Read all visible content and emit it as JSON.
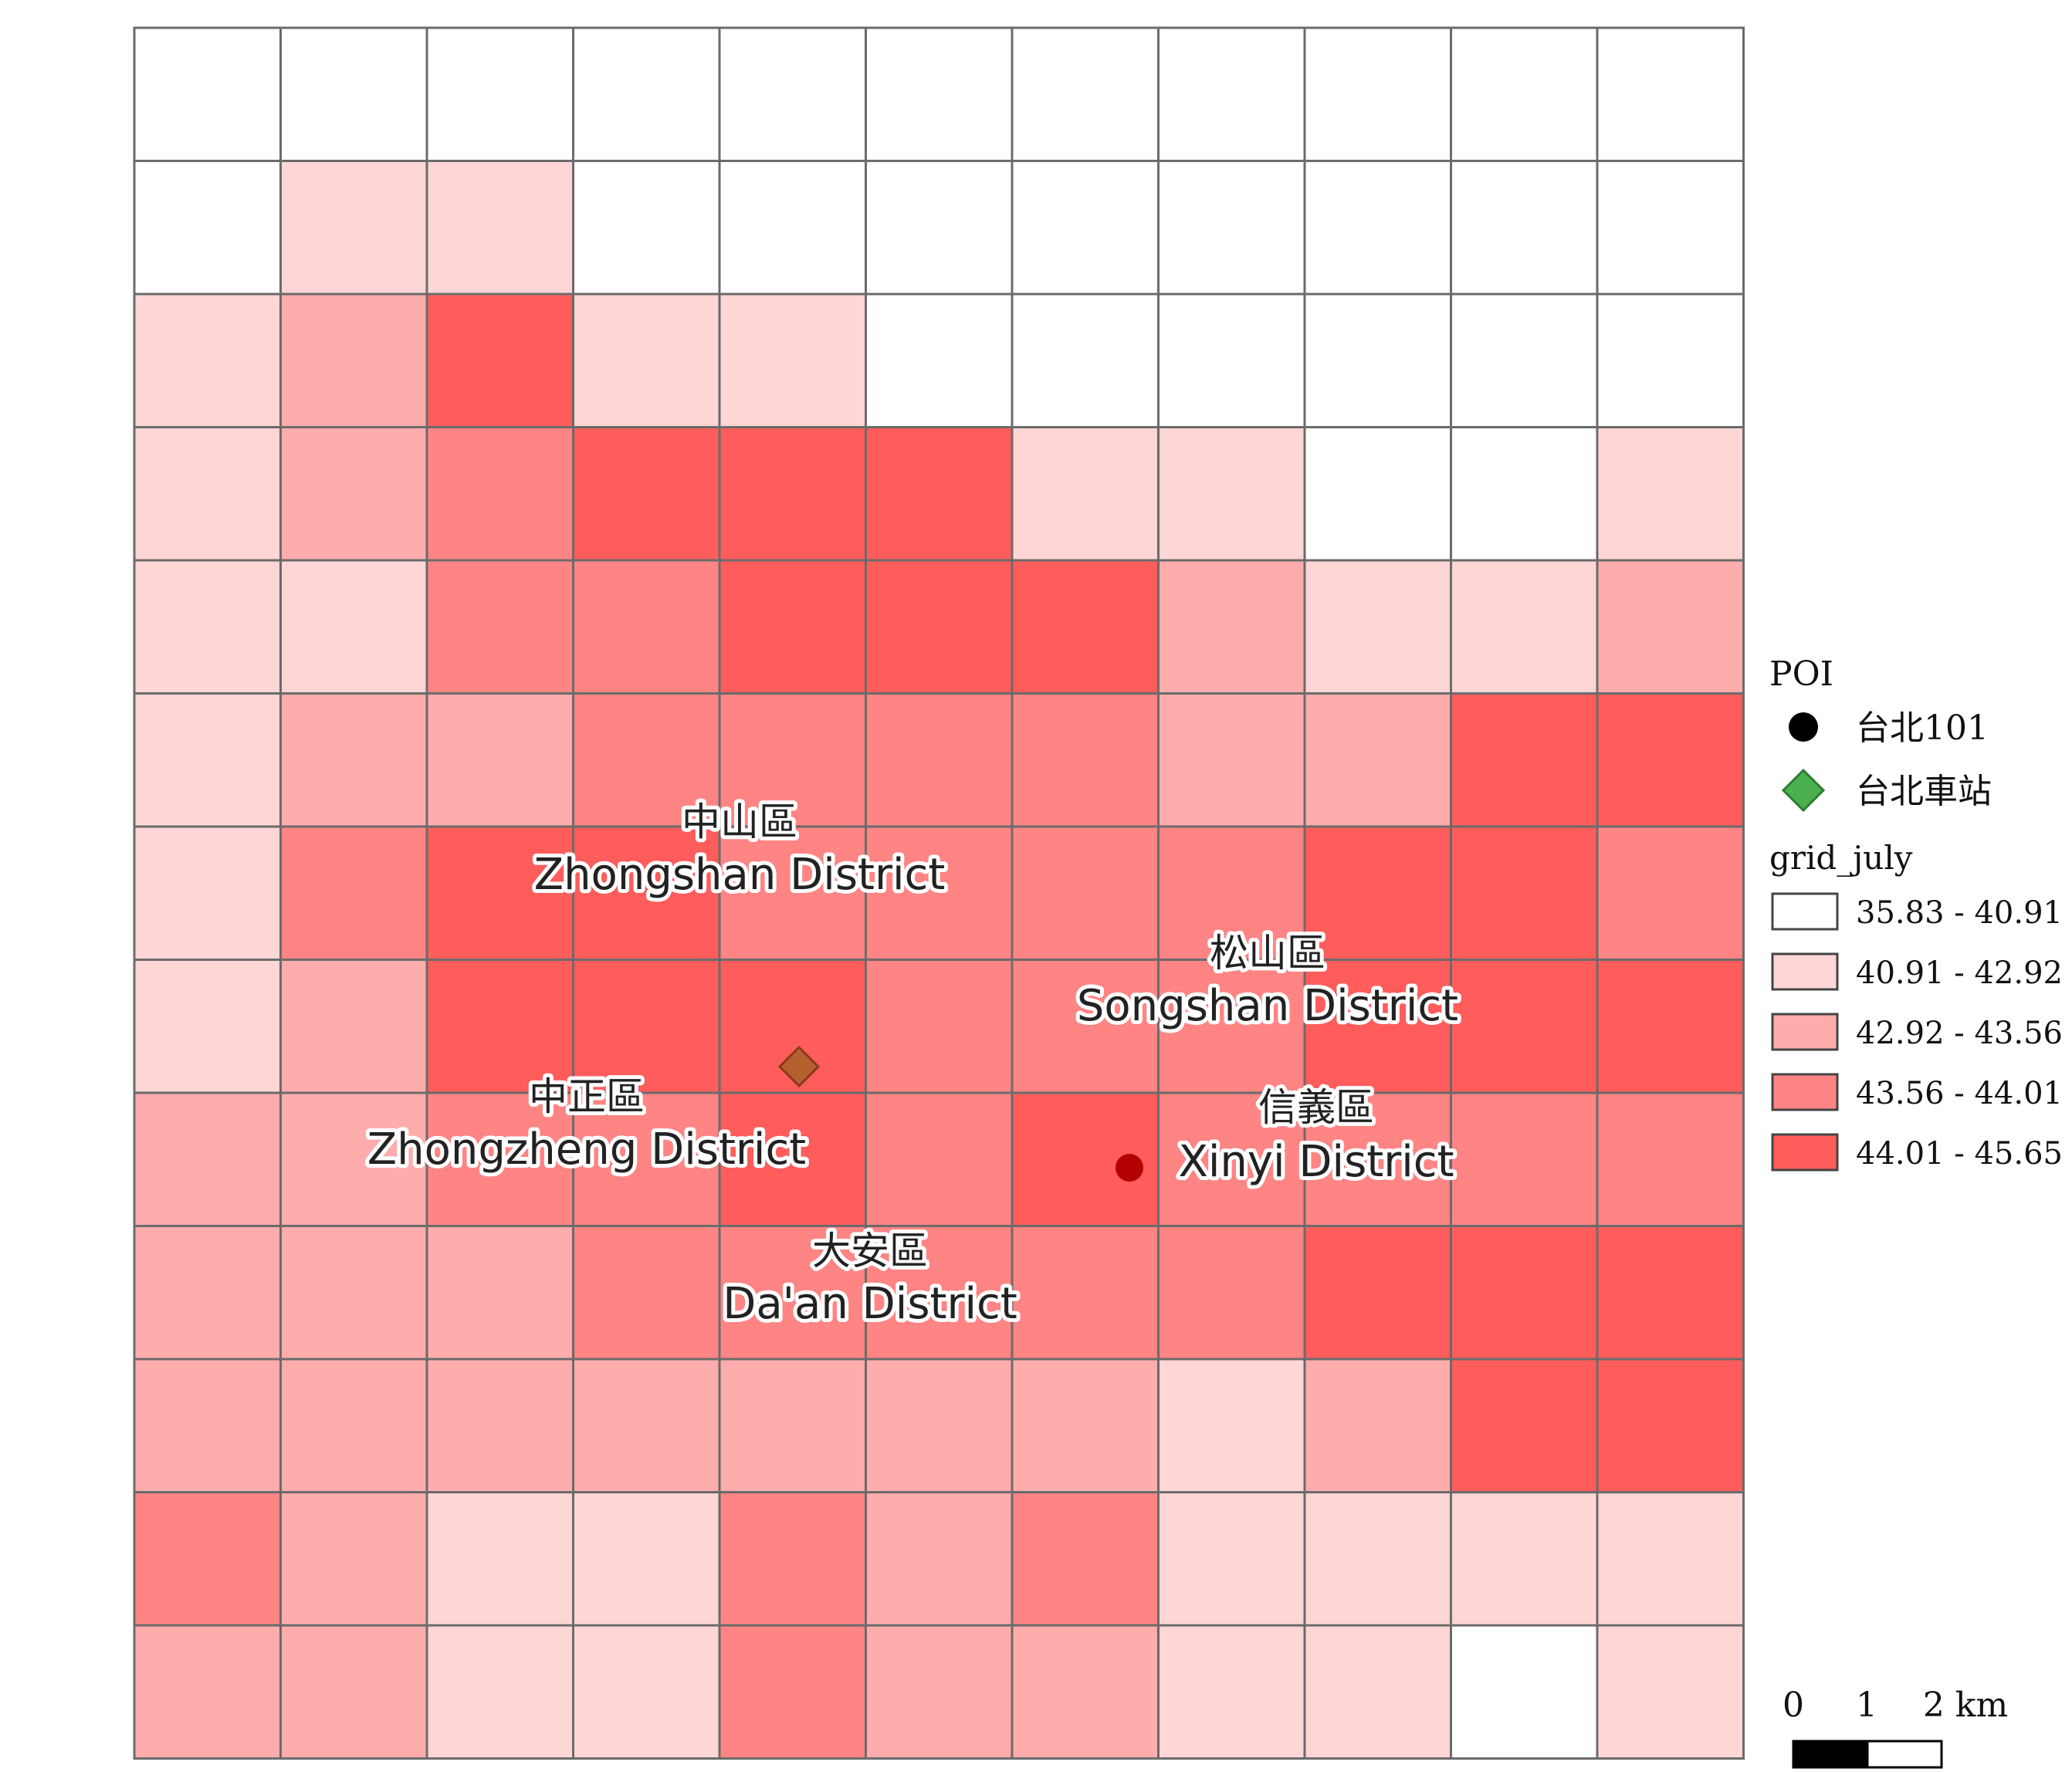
{
  "map": {
    "grid_rows": [
      [
        0,
        0,
        0,
        0,
        0,
        0,
        0,
        0,
        0,
        0,
        0
      ],
      [
        0,
        1,
        1,
        0,
        0,
        0,
        0,
        0,
        0,
        0,
        0
      ],
      [
        1,
        2,
        4,
        1,
        1,
        0,
        0,
        0,
        0,
        0,
        0
      ],
      [
        1,
        2,
        3,
        4,
        4,
        4,
        1,
        1,
        0,
        0,
        1
      ],
      [
        1,
        1,
        3,
        3,
        4,
        4,
        4,
        2,
        1,
        1,
        2
      ],
      [
        1,
        2,
        2,
        3,
        3,
        3,
        3,
        2,
        2,
        4,
        4
      ],
      [
        1,
        3,
        4,
        4,
        3,
        3,
        3,
        3,
        4,
        4,
        3
      ],
      [
        1,
        2,
        4,
        4,
        4,
        3,
        3,
        3,
        4,
        4,
        4
      ],
      [
        2,
        2,
        3,
        3,
        4,
        3,
        4,
        3,
        3,
        3,
        3
      ],
      [
        2,
        2,
        2,
        3,
        3,
        3,
        3,
        3,
        4,
        4,
        4
      ],
      [
        2,
        2,
        2,
        2,
        2,
        2,
        2,
        1,
        2,
        4,
        4
      ],
      [
        3,
        2,
        1,
        1,
        3,
        2,
        3,
        1,
        1,
        1,
        1
      ],
      [
        2,
        2,
        1,
        1,
        3,
        2,
        2,
        1,
        1,
        0,
        1
      ]
    ],
    "class_colors": [
      "#ffffff",
      "#ffd6d6",
      "#ffacac",
      "#ff8484",
      "#ff5c5c"
    ],
    "districts": [
      {
        "zh": "中山區",
        "en": "Zhongshan District"
      },
      {
        "zh": "松山區",
        "en": "Songshan District"
      },
      {
        "zh": "中正區",
        "en": "Zhongzheng District"
      },
      {
        "zh": "信義區",
        "en": "Xinyi District"
      },
      {
        "zh": "大安區",
        "en": "Da'an District"
      }
    ],
    "boundary_color": "#8b0000"
  },
  "legend": {
    "poi_title": "POI",
    "poi_items": [
      {
        "label": "台北101",
        "color": "#000000",
        "symbol": "circle"
      },
      {
        "label": "台北車站",
        "color": "#4caf50",
        "symbol": "diamond"
      }
    ],
    "grid_title": "grid_july",
    "grid_classes": [
      {
        "range": "35.83 - 40.91",
        "color": "#ffffff"
      },
      {
        "range": "40.91 - 42.92",
        "color": "#ffd6d6"
      },
      {
        "range": "42.92 - 43.56",
        "color": "#ffacac"
      },
      {
        "range": "43.56 - 44.01",
        "color": "#ff8484"
      },
      {
        "range": "44.01 - 45.65",
        "color": "#ff5c5c"
      }
    ]
  },
  "scalebar": {
    "ticks": [
      "0",
      "1",
      "2 km"
    ]
  }
}
